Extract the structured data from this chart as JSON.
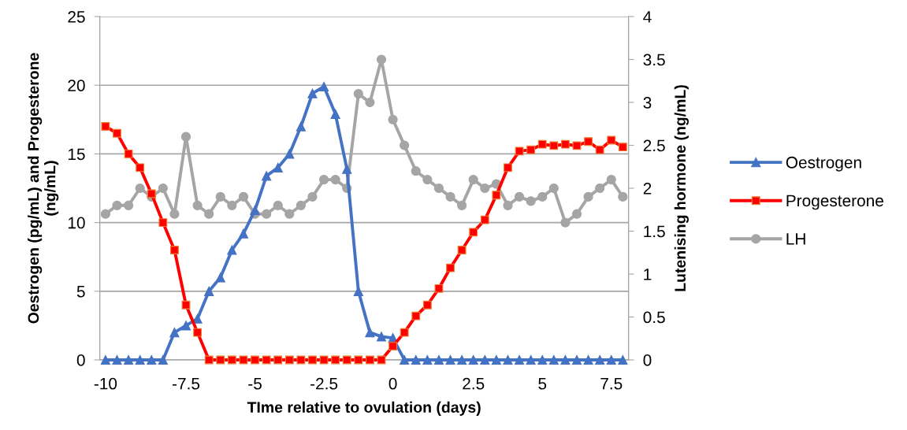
{
  "chart_data": {
    "type": "line",
    "xlabel": "TIme relative to ovulation (days)",
    "ylabel": "Oestrogen (pg/mL) and Progesterone\n(ng/mL)",
    "y2label": "Lutenising hormone (ng/mL)",
    "categories": [
      "-10",
      null,
      null,
      null,
      null,
      null,
      null,
      "-7.5",
      null,
      null,
      null,
      null,
      null,
      "-5",
      null,
      null,
      null,
      null,
      null,
      "-2.5",
      null,
      null,
      null,
      null,
      null,
      "0",
      null,
      null,
      null,
      null,
      null,
      null,
      "2.5",
      null,
      null,
      null,
      null,
      null,
      "5",
      null,
      null,
      null,
      null,
      null,
      "7.5",
      null
    ],
    "series": [
      {
        "name": "Oestrogen",
        "color": "#4472c4",
        "marker": "triangle",
        "values": [
          0,
          0,
          0,
          0,
          0,
          0,
          2.0,
          2.5,
          3.0,
          5.0,
          6.0,
          8.0,
          9.2,
          10.9,
          13.4,
          14.0,
          15.0,
          17.0,
          19.4,
          19.9,
          17.9,
          13.9,
          5.0,
          2.0,
          1.7,
          1.6,
          0,
          0,
          0,
          0,
          0,
          0,
          0,
          0,
          0,
          0,
          0,
          0,
          0,
          0,
          0,
          0,
          0,
          0,
          0,
          0
        ]
      },
      {
        "name": "Progesterone",
        "color": "#ff0000",
        "marker": "square",
        "values": [
          17.0,
          16.5,
          15.0,
          14.0,
          12.1,
          10.0,
          8.0,
          4.0,
          2.0,
          0,
          0,
          0,
          0,
          0,
          0,
          0,
          0,
          0,
          0,
          0,
          0,
          0,
          0,
          0,
          0,
          1.0,
          2.0,
          3.2,
          4.0,
          5.2,
          6.7,
          8.0,
          9.3,
          10.2,
          12.0,
          14.0,
          15.2,
          15.3,
          15.7,
          15.6,
          15.7,
          15.6,
          15.9,
          15.3,
          16.0,
          15.5
        ]
      },
      {
        "name": "LH",
        "color": "#a5a5a5",
        "marker": "circle",
        "axis": "y2",
        "values": [
          1.7,
          1.8,
          1.8,
          2.0,
          1.9,
          2.0,
          1.7,
          2.6,
          1.8,
          1.7,
          1.9,
          1.8,
          1.9,
          1.7,
          1.7,
          1.8,
          1.7,
          1.8,
          1.9,
          2.1,
          2.1,
          2.0,
          3.1,
          3.0,
          3.5,
          2.8,
          2.5,
          2.2,
          2.1,
          2.0,
          1.9,
          1.8,
          2.1,
          2.0,
          2.05,
          1.8,
          1.9,
          1.85,
          1.9,
          2.0,
          1.6,
          1.7,
          1.9,
          2.0,
          2.1,
          1.9
        ]
      }
    ],
    "ylim": [
      0,
      25
    ],
    "yticks": [
      0,
      5,
      10,
      15,
      20,
      25
    ],
    "y2lim": [
      0,
      4
    ],
    "y2ticks": [
      0,
      0.5,
      1,
      1.5,
      2,
      2.5,
      3,
      3.5,
      4
    ],
    "grid": "y",
    "legend": "right"
  }
}
